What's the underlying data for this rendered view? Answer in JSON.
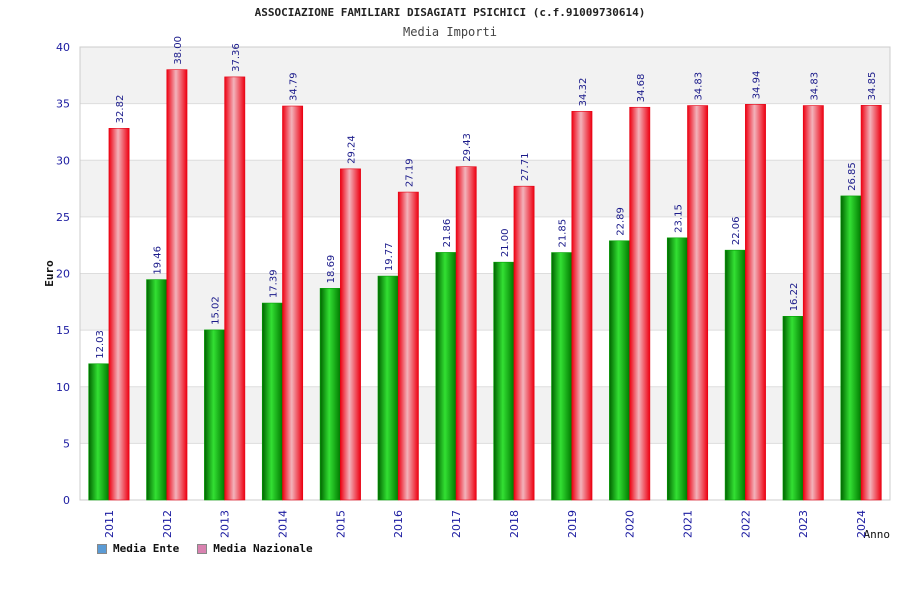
{
  "colors": {
    "ente": "#00a000",
    "nazionale": "#e60012",
    "legend_ente": "#5b9bd5",
    "legend_nazionale": "#d982b0",
    "axis_text": "#1a1aa0"
  },
  "chart_data": {
    "type": "bar",
    "title": "ASSOCIAZIONE FAMILIARI DISAGIATI PSICHICI (c.f.91009730614)",
    "subtitle": "Media Importi",
    "xlabel": "Anno",
    "ylabel": "Euro",
    "ylim": [
      0,
      40
    ],
    "yticks": [
      "0",
      "5",
      "10",
      "15",
      "20",
      "25",
      "30",
      "35",
      "40"
    ],
    "grid": true,
    "legend_position": "bottom-left",
    "categories": [
      "2011",
      "2012",
      "2013",
      "2014",
      "2015",
      "2016",
      "2017",
      "2018",
      "2019",
      "2020",
      "2021",
      "2022",
      "2023",
      "2024"
    ],
    "series": [
      {
        "name": "Media Ente",
        "values": [
          12.03,
          19.46,
          15.02,
          17.39,
          18.69,
          19.77,
          21.86,
          21.0,
          21.85,
          22.89,
          23.15,
          22.06,
          16.22,
          26.85
        ],
        "labels": [
          "12.03",
          "19.46",
          "15.02",
          "17.39",
          "18.69",
          "19.77",
          "21.86",
          "21.00",
          "21.85",
          "22.89",
          "23.15",
          "22.06",
          "16.22",
          "26.85"
        ]
      },
      {
        "name": "Media Nazionale",
        "values": [
          32.82,
          38.0,
          37.36,
          34.79,
          29.24,
          27.19,
          29.43,
          27.71,
          34.32,
          34.68,
          34.83,
          34.94,
          34.83,
          34.85
        ],
        "labels": [
          "32.82",
          "38.00",
          "37.36",
          "34.79",
          "29.24",
          "27.19",
          "29.43",
          "27.71",
          "34.32",
          "34.68",
          "34.83",
          "34.94",
          "34.83",
          "34.85"
        ]
      }
    ]
  }
}
